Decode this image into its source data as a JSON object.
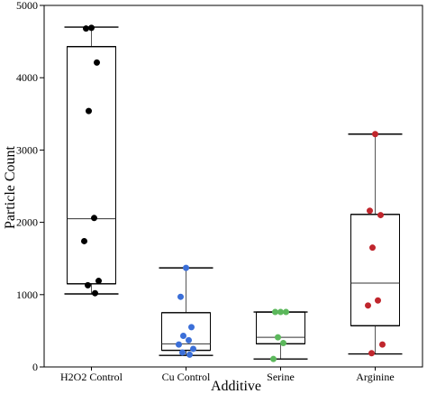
{
  "chart_data": {
    "type": "box",
    "title": "",
    "xlabel": "Additive",
    "ylabel": "Particle Count",
    "ylim": [
      0,
      5000
    ],
    "yticks": [
      0,
      1000,
      2000,
      3000,
      4000,
      5000
    ],
    "grid": false,
    "categories": [
      "H2O2 Control",
      "Cu Control",
      "Serine",
      "Arginine"
    ],
    "boxes": [
      {
        "category": "H2O2 Control",
        "whisker_low": 1010,
        "q1": 1150,
        "median": 2050,
        "q3": 4430,
        "whisker_high": 4700,
        "points": [
          4690,
          4680,
          4210,
          3540,
          2060,
          1740,
          1190,
          1130,
          1020
        ],
        "color": "#000000"
      },
      {
        "category": "Cu Control",
        "whisker_low": 160,
        "q1": 230,
        "median": 320,
        "q3": 750,
        "whisker_high": 1370,
        "points": [
          1370,
          970,
          550,
          430,
          370,
          310,
          250,
          200,
          170
        ],
        "color": "#3b6fd8"
      },
      {
        "category": "Serine",
        "whisker_low": 110,
        "q1": 320,
        "median": 410,
        "q3": 760,
        "whisker_high": 760,
        "points": [
          760,
          760,
          760,
          410,
          330,
          110
        ],
        "color": "#5cb85c"
      },
      {
        "category": "Arginine",
        "whisker_low": 180,
        "q1": 570,
        "median": 1160,
        "q3": 2110,
        "whisker_high": 3220,
        "points": [
          3220,
          2160,
          2100,
          1650,
          920,
          850,
          310,
          190
        ],
        "color": "#c0262d"
      }
    ]
  }
}
